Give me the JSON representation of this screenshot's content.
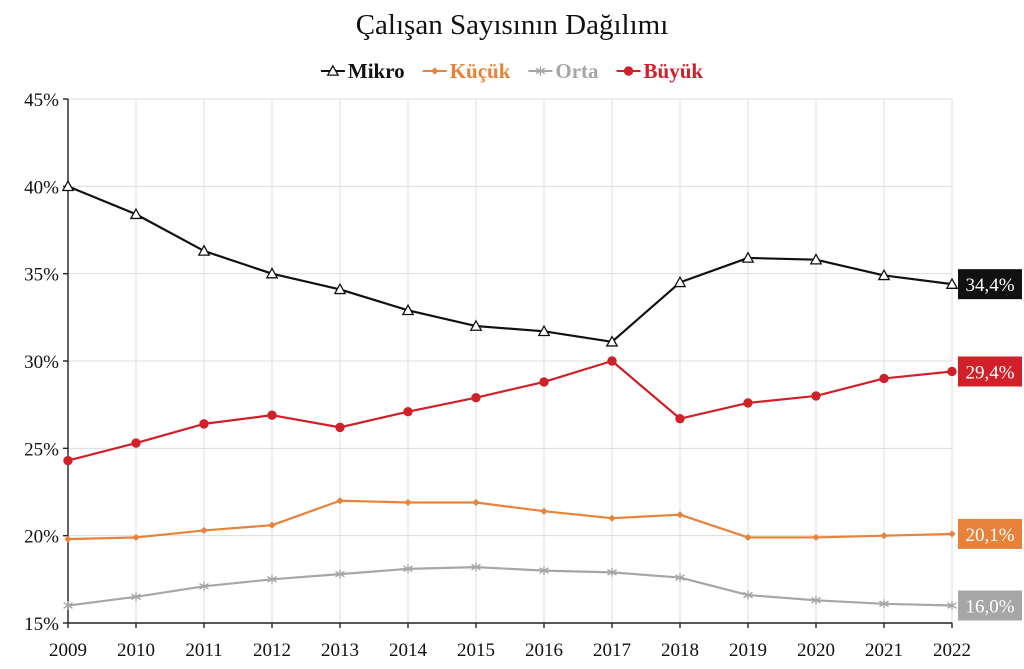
{
  "chart_data": {
    "type": "line",
    "title": "Çalışan Sayısının Dağılımı",
    "x": [
      2009,
      2010,
      2011,
      2012,
      2013,
      2014,
      2015,
      2016,
      2017,
      2018,
      2019,
      2020,
      2021,
      2022
    ],
    "ylim": [
      15,
      45
    ],
    "yticks": [
      "15%",
      "20%",
      "25%",
      "30%",
      "35%",
      "40%",
      "45%"
    ],
    "grid": true,
    "legend": "top-center",
    "series": [
      {
        "name": "Mikro",
        "color": "#111111",
        "marker": "triangle",
        "end_label": "34,4%",
        "values": [
          40.0,
          38.4,
          36.3,
          35.0,
          34.1,
          32.9,
          32.0,
          31.7,
          31.1,
          34.5,
          35.9,
          35.8,
          34.9,
          34.4
        ]
      },
      {
        "name": "Küçük",
        "color": "#e8823a",
        "marker": "diamond",
        "end_label": "20,1%",
        "values": [
          19.8,
          19.9,
          20.3,
          20.6,
          22.0,
          21.9,
          21.9,
          21.4,
          21.0,
          21.2,
          19.9,
          19.9,
          20.0,
          20.1
        ]
      },
      {
        "name": "Orta",
        "color": "#a6a6a6",
        "marker": "asterisk",
        "end_label": "16,0%",
        "values": [
          16.0,
          16.5,
          17.1,
          17.5,
          17.8,
          18.1,
          18.2,
          18.0,
          17.9,
          17.6,
          16.6,
          16.3,
          16.1,
          16.0
        ]
      },
      {
        "name": "Büyük",
        "color": "#d0202a",
        "marker": "circle",
        "end_label": "29,4%",
        "values": [
          24.3,
          25.3,
          26.4,
          26.9,
          26.2,
          27.1,
          27.9,
          28.8,
          30.0,
          26.7,
          27.6,
          28.0,
          29.0,
          29.4
        ]
      }
    ]
  }
}
